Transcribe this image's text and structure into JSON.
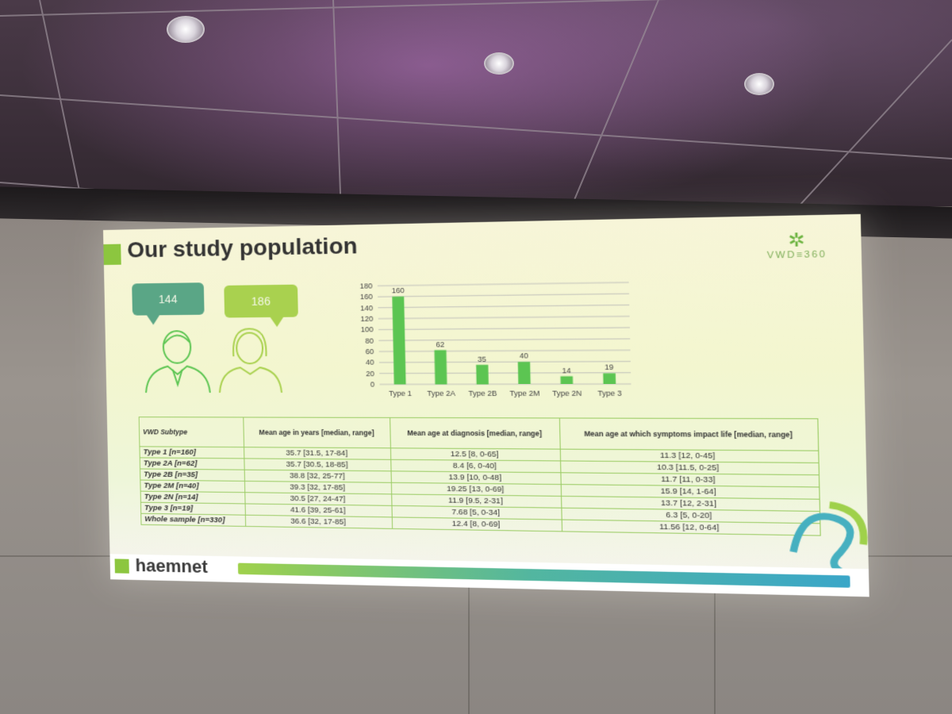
{
  "slide": {
    "title": "Our study population",
    "brand": "VWD≡360",
    "bubbles": {
      "male": "144",
      "female": "186"
    },
    "footer_logo": "haemnet"
  },
  "chart_data": {
    "type": "bar",
    "categories": [
      "Type 1",
      "Type 2A",
      "Type 2B",
      "Type 2M",
      "Type 2N",
      "Type 3"
    ],
    "values": [
      160,
      62,
      35,
      40,
      14,
      19
    ],
    "yticks": [
      0,
      20,
      40,
      60,
      80,
      100,
      120,
      140,
      160,
      180
    ],
    "ylim": [
      0,
      180
    ],
    "grid": true,
    "bar_color": "#5cc552"
  },
  "table": {
    "headers": [
      "VWD Subtype",
      "Mean age in years [median, range]",
      "Mean age at diagnosis [median, range]",
      "Mean age at which symptoms impact life [median, range]"
    ],
    "rows": [
      [
        "Type 1 [n=160]",
        "35.7 [31.5, 17-84]",
        "12.5 [8, 0-65]",
        "11.3 [12, 0-45]"
      ],
      [
        "Type 2A [n=62]",
        "35.7 [30.5, 18-85]",
        "8.4 [6, 0-40]",
        "10.3 [11.5, 0-25]"
      ],
      [
        "Type 2B [n=35]",
        "38.8 [32, 25-77]",
        "13.9 [10, 0-48]",
        "11.7 [11, 0-33]"
      ],
      [
        "Type 2M [n=40]",
        "39.3 [32, 17-85]",
        "19.25 [13, 0-69]",
        "15.9 [14, 1-64]"
      ],
      [
        "Type 2N [n=14]",
        "30.5 [27, 24-47]",
        "11.9 [9.5, 2-31]",
        "13.7 [12, 2-31]"
      ],
      [
        "Type 3 [n=19]",
        "41.6 [39, 25-61]",
        "7.68 [5, 0-34]",
        "6.3 [5, 0-20]"
      ],
      [
        "Whole sample [n=330]",
        "36.6 [32, 17-85]",
        "12.4 [8, 0-69]",
        "11.56 [12, 0-64]"
      ]
    ]
  },
  "colors": {
    "accent_green": "#8cc63f",
    "teal": "#5aa686",
    "lime": "#a9d14f"
  },
  "icons": [
    "male-person-icon",
    "female-person-icon",
    "speech-bubble-icon",
    "brand-logo-icon"
  ]
}
